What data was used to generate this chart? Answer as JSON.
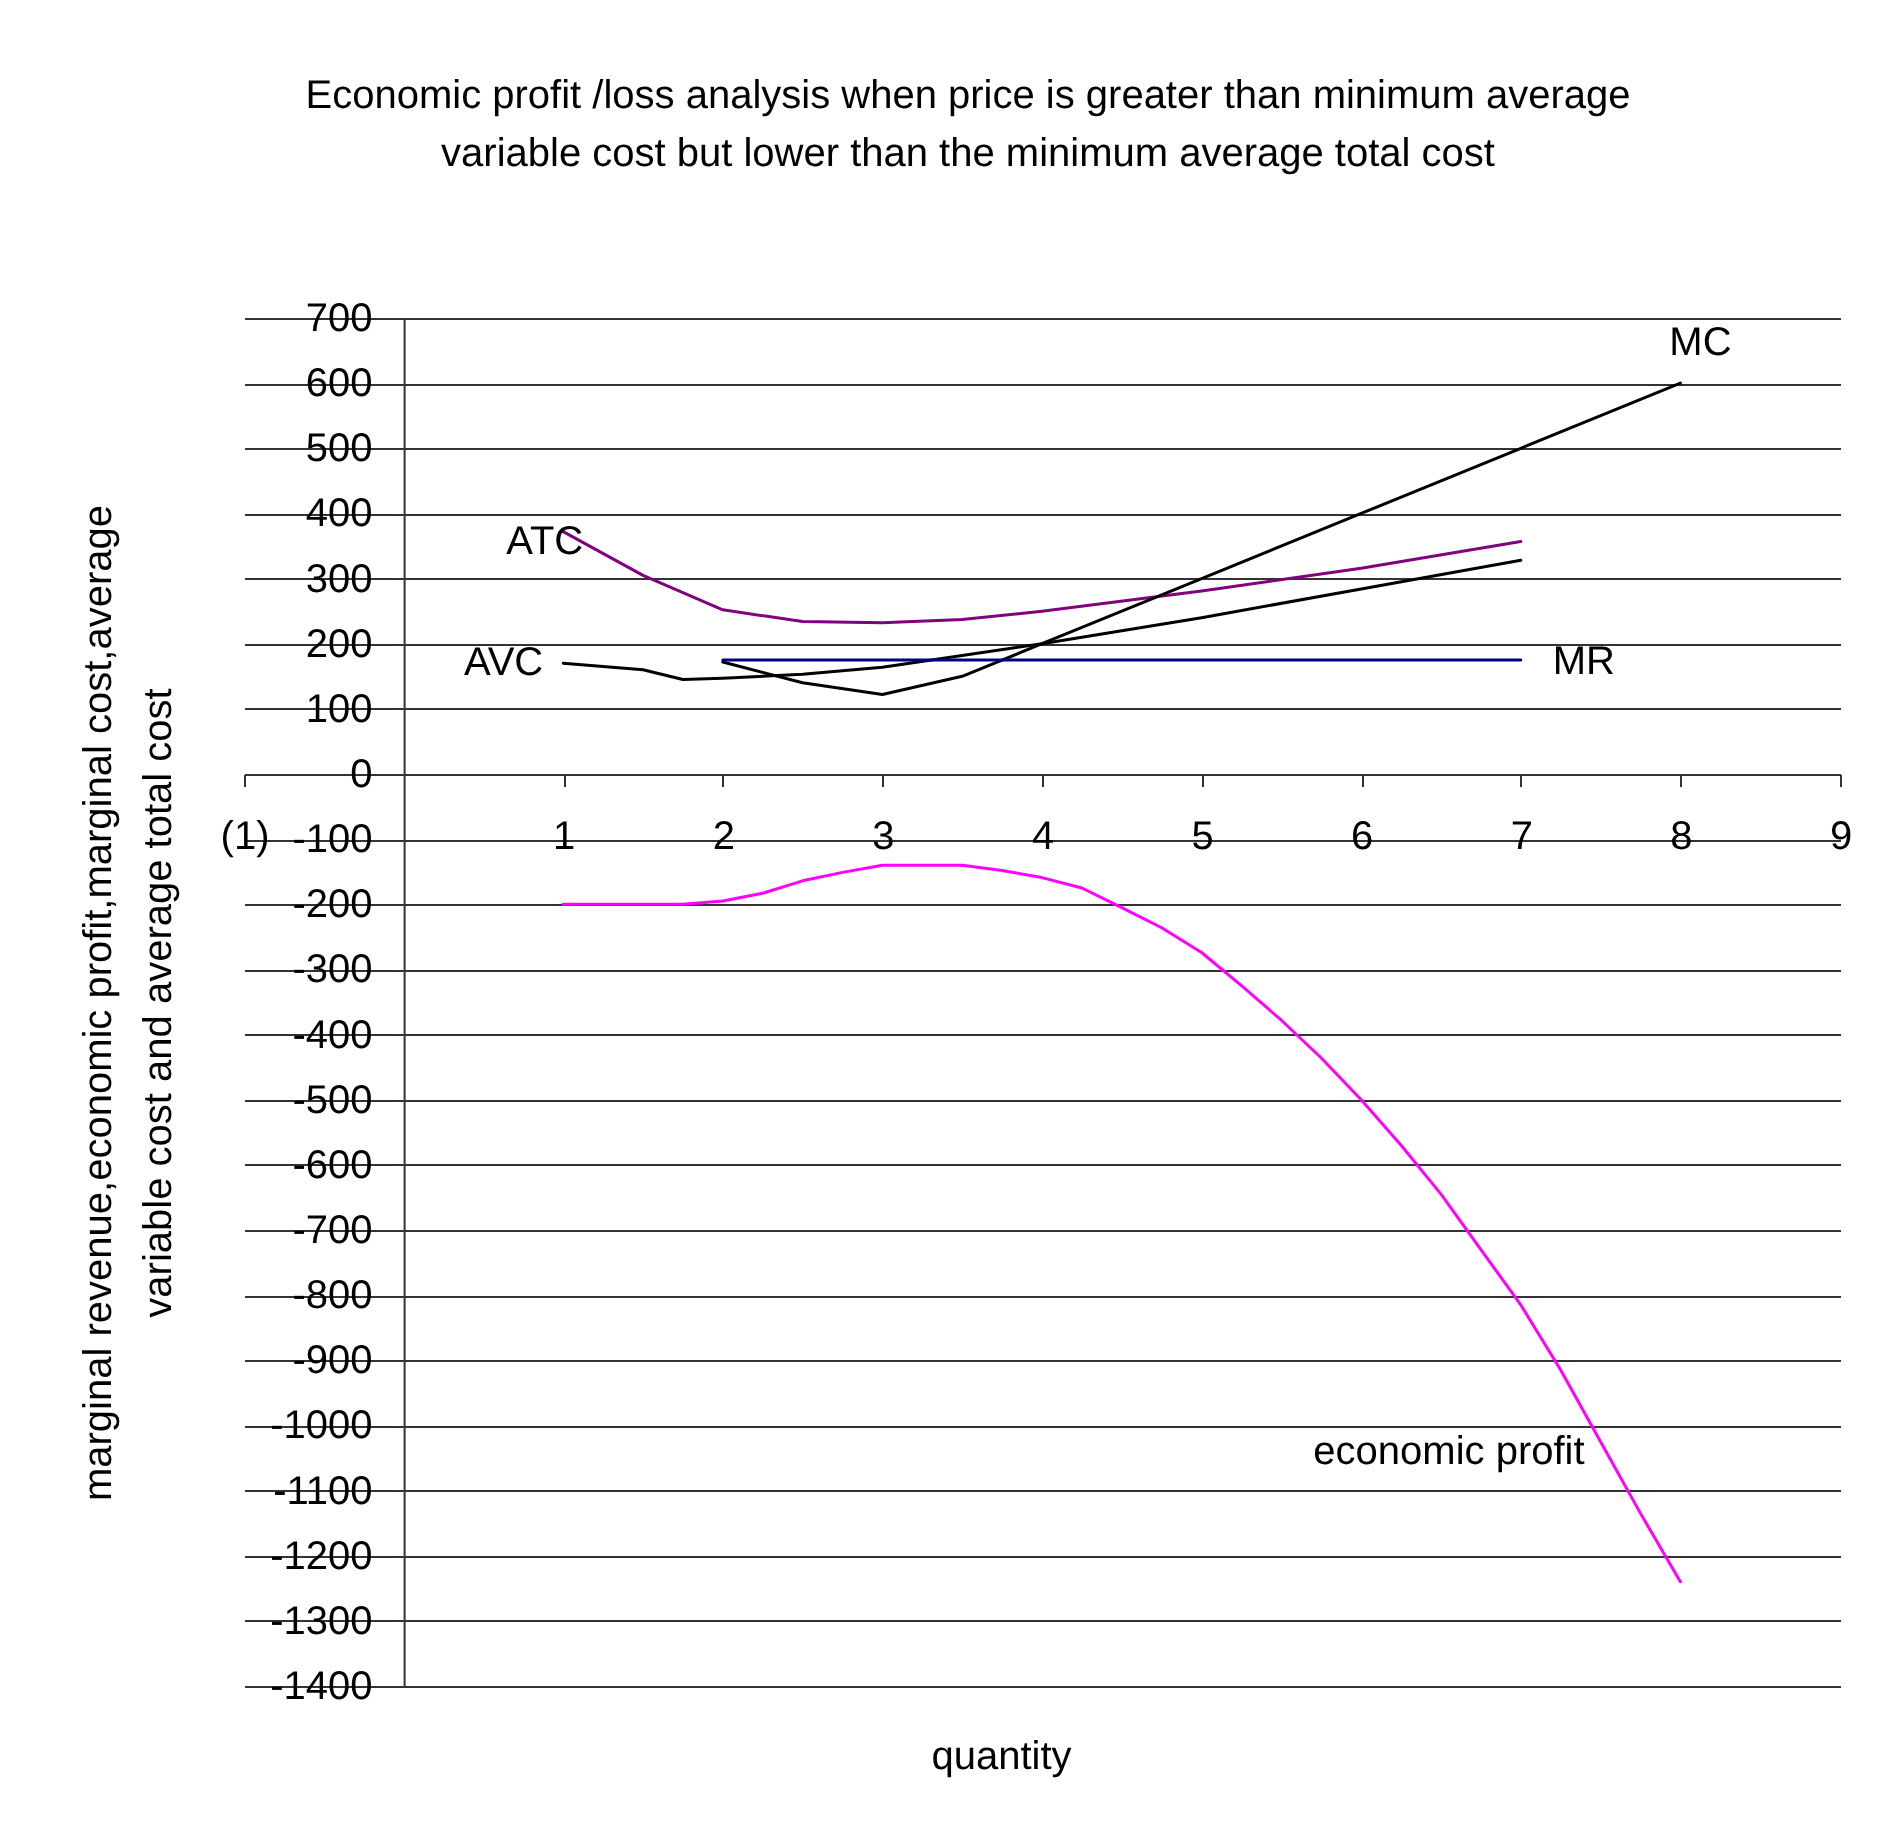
{
  "chart_data": {
    "type": "line",
    "title": "Economic profit /loss analysis when price is greater than minimum average variable cost but lower than the minimum average total cost",
    "xlabel": "quantity",
    "ylabel": "marginal revenue,economic profit,marginal cost,average variable cost and average total cost",
    "xlim": [
      -1,
      9
    ],
    "xticks": [
      {
        "value": -1,
        "label": "(1)"
      },
      1,
      2,
      3,
      4,
      5,
      6,
      7,
      8,
      9
    ],
    "ylim": [
      -1400,
      700
    ],
    "yticks": [
      -1400,
      -1300,
      -1200,
      -1100,
      -1000,
      -900,
      -800,
      -700,
      -600,
      -500,
      -400,
      -300,
      -200,
      -100,
      0,
      100,
      200,
      300,
      400,
      500,
      600,
      700
    ],
    "grid": "y",
    "series": [
      {
        "name": "economic profit",
        "color": "#ff00ff",
        "x": [
          1,
          1.25,
          1.5,
          1.75,
          2,
          2.25,
          2.5,
          2.75,
          3,
          3.25,
          3.5,
          3.75,
          4,
          4.25,
          4.5,
          4.75,
          5,
          5.25,
          5.5,
          5.75,
          6,
          6.25,
          6.5,
          6.75,
          7,
          7.25,
          7.5,
          7.75,
          8
        ],
        "values": [
          -200,
          -200,
          -200,
          -200,
          -195,
          -183,
          -164,
          -151,
          -140,
          -140,
          -140,
          -148,
          -159,
          -175,
          -205,
          -236,
          -274,
          -325,
          -378,
          -436,
          -500,
          -570,
          -645,
          -730,
          -815,
          -915,
          -1025,
          -1135,
          -1240
        ]
      },
      {
        "name": "ATC",
        "color": "#800080",
        "x": [
          1,
          1.5,
          2,
          2.5,
          3,
          3.5,
          4,
          5,
          6,
          7
        ],
        "values": [
          372,
          305,
          252,
          234,
          232,
          237,
          250,
          281,
          316,
          357
        ]
      },
      {
        "name": "AVC",
        "color": "#000000",
        "x": [
          1,
          1.5,
          1.75,
          2,
          2.5,
          3,
          4,
          5,
          6,
          7
        ],
        "values": [
          170,
          160,
          145,
          147,
          153,
          164,
          200,
          240,
          284,
          328
        ]
      },
      {
        "name": "MC",
        "color": "#000000",
        "x": [
          2,
          2.5,
          3,
          3.5,
          4,
          5,
          6,
          7,
          8
        ],
        "values": [
          172,
          140,
          122,
          150,
          200,
          300,
          400,
          500,
          600
        ]
      },
      {
        "name": "MR",
        "color": "#000080",
        "x": [
          2,
          3,
          4,
          5,
          6,
          7
        ],
        "values": [
          175,
          175,
          175,
          175,
          175,
          175
        ]
      }
    ]
  }
}
